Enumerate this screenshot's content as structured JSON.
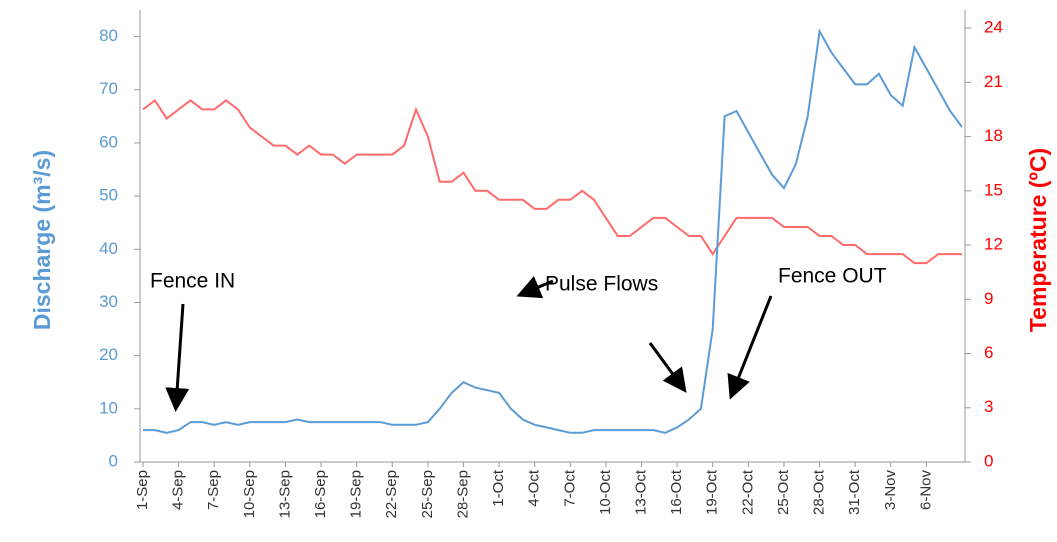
{
  "chart_data": {
    "type": "line",
    "y_label": "Discharge (m³/s)",
    "y2_label": "Temperature (ºC)",
    "categories": [
      "1-Sep",
      null,
      null,
      "4-Sep",
      null,
      null,
      "7-Sep",
      null,
      null,
      "10-Sep",
      null,
      null,
      "13-Sep",
      null,
      null,
      "16-Sep",
      null,
      null,
      "19-Sep",
      null,
      null,
      "22-Sep",
      null,
      null,
      "25-Sep",
      null,
      null,
      "28-Sep",
      null,
      null,
      "1-Oct",
      null,
      null,
      "4-Oct",
      null,
      null,
      "7-Oct",
      null,
      null,
      "10-Oct",
      null,
      null,
      "13-Oct",
      null,
      null,
      "16-Oct",
      null,
      null,
      "19-Oct",
      null,
      null,
      "22-Oct",
      null,
      null,
      "25-Oct",
      null,
      null,
      "28-Oct",
      null,
      null,
      "31-Oct",
      null,
      null,
      "3-Nov",
      null,
      null,
      "6-Nov",
      null,
      null,
      null
    ],
    "series": [
      {
        "color": "#5b9bd5",
        "values": [
          6,
          6,
          5.5,
          6,
          7.5,
          7.5,
          7,
          7.5,
          7,
          7.5,
          7.5,
          7.5,
          7.5,
          8,
          7.5,
          7.5,
          7.5,
          7.5,
          7.5,
          7.5,
          7.5,
          7,
          7,
          7,
          7.5,
          10,
          13,
          15,
          14,
          13.5,
          13,
          10,
          8,
          7,
          6.5,
          6,
          5.5,
          5.5,
          6,
          6,
          6,
          6,
          6,
          6,
          5.5,
          6.5,
          8,
          10,
          25,
          65,
          66,
          62,
          58,
          54,
          51.5,
          56,
          65,
          81,
          77,
          74,
          71,
          71,
          73,
          69,
          67,
          78,
          74,
          70,
          66,
          63
        ]
      },
      {
        "color": "#ff6b6b",
        "axis": "y2",
        "values": [
          19.5,
          20,
          19,
          19.5,
          20,
          19.5,
          19.5,
          20,
          19.5,
          18.5,
          18,
          17.5,
          17.5,
          17,
          17.5,
          17,
          17,
          16.5,
          17,
          17,
          17,
          17,
          17.5,
          19.5,
          18,
          15.5,
          15.5,
          16,
          15,
          15,
          14.5,
          14.5,
          14.5,
          14,
          14,
          14.5,
          14.5,
          15,
          14.5,
          13.5,
          12.5,
          12.5,
          13,
          13.5,
          13.5,
          13,
          12.5,
          12.5,
          11.5,
          12.5,
          13.5,
          13.5,
          13.5,
          13.5,
          13,
          13,
          13,
          12.5,
          12.5,
          12,
          12,
          11.5,
          11.5,
          11.5,
          11.5,
          11,
          11,
          11.5,
          11.5,
          11.5
        ]
      }
    ],
    "ylim": [
      0,
      85
    ],
    "yticks": [
      0,
      10,
      20,
      30,
      40,
      50,
      60,
      70,
      80
    ],
    "y_color": "#5b9bd5",
    "y2lim": [
      0,
      25
    ],
    "y2ticks": [
      0,
      3,
      6,
      9,
      12,
      15,
      18,
      21,
      24
    ],
    "y2_color": "#ff0000",
    "annotations": [
      "Fence IN",
      "Pulse Flows",
      "Fence OUT"
    ]
  }
}
